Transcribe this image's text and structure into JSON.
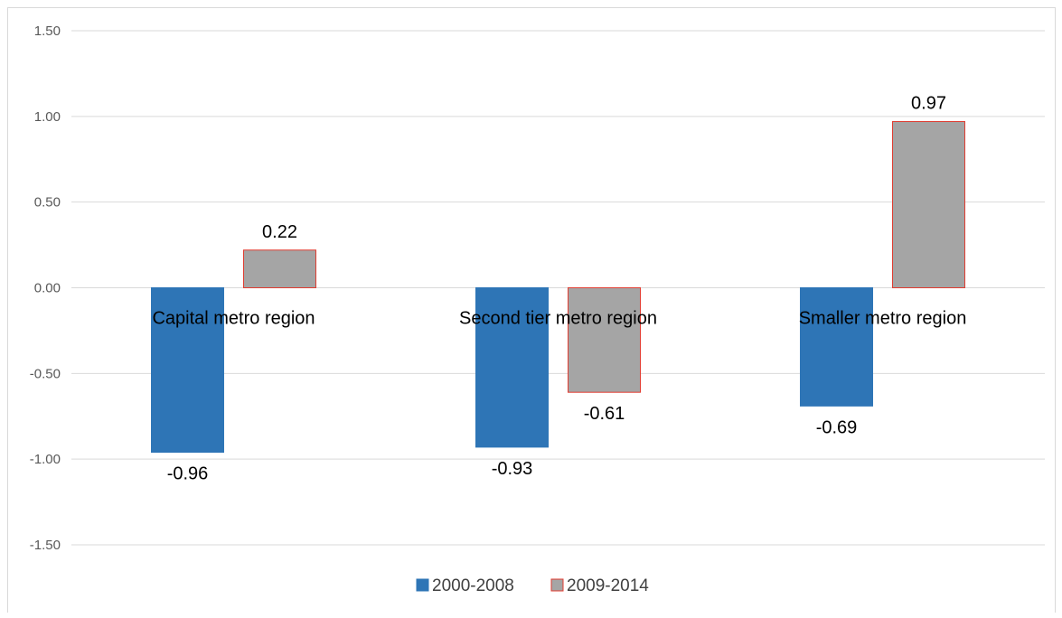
{
  "chart_data": {
    "type": "bar",
    "categories": [
      "Capital metro region",
      "Second tier metro region",
      "Smaller metro region"
    ],
    "series": [
      {
        "name": "2000-2008",
        "values": [
          -0.96,
          -0.93,
          -0.69
        ],
        "labels": [
          "-0.96",
          "-0.93",
          "-0.69"
        ],
        "color": "#2e75b6",
        "stroke": "#2e75b6"
      },
      {
        "name": "2009-2014",
        "values": [
          0.22,
          -0.61,
          0.97
        ],
        "labels": [
          "0.22",
          "-0.61",
          "0.97"
        ],
        "color": "#a5a5a5",
        "stroke": "#e03c31"
      }
    ],
    "ylim": [
      -1.5,
      1.5
    ],
    "yticks": [
      1.5,
      1.0,
      0.5,
      0.0,
      -0.5,
      -1.0,
      -1.5
    ],
    "ytick_labels": [
      "1.50",
      "1.00",
      "0.50",
      "0.00",
      "-0.50",
      "-1.00",
      "-1.50"
    ],
    "grid": true,
    "legend_position": "bottom",
    "title": "",
    "xlabel": "",
    "ylabel": ""
  }
}
